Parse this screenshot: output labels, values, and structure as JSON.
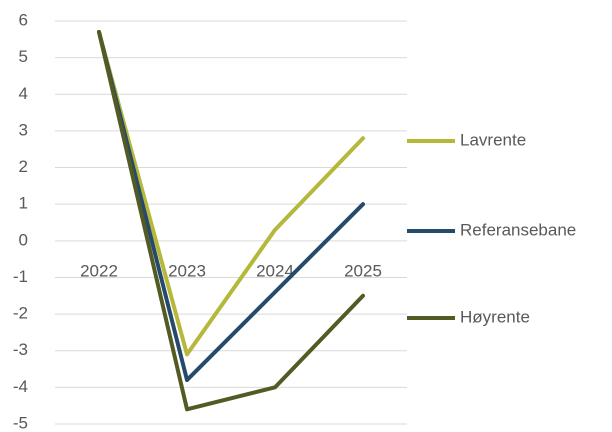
{
  "chart_data": {
    "type": "line",
    "categories": [
      "2022",
      "2023",
      "2024",
      "2025"
    ],
    "series": [
      {
        "name": "Lavrente",
        "color": "#b6b83c",
        "values": [
          5.7,
          -3.1,
          0.3,
          2.8
        ]
      },
      {
        "name": "Referansebane",
        "color": "#264a6b",
        "values": [
          5.7,
          -3.8,
          -1.4,
          1.0
        ]
      },
      {
        "name": "Høyrente",
        "color": "#545a24",
        "values": [
          5.7,
          -4.6,
          -4.0,
          -1.5
        ]
      }
    ],
    "ylim": [
      -5,
      6
    ],
    "yticks": [
      -5,
      -4,
      -3,
      -2,
      -1,
      0,
      1,
      2,
      3,
      4,
      5,
      6
    ],
    "grid": true,
    "legend": "right"
  }
}
